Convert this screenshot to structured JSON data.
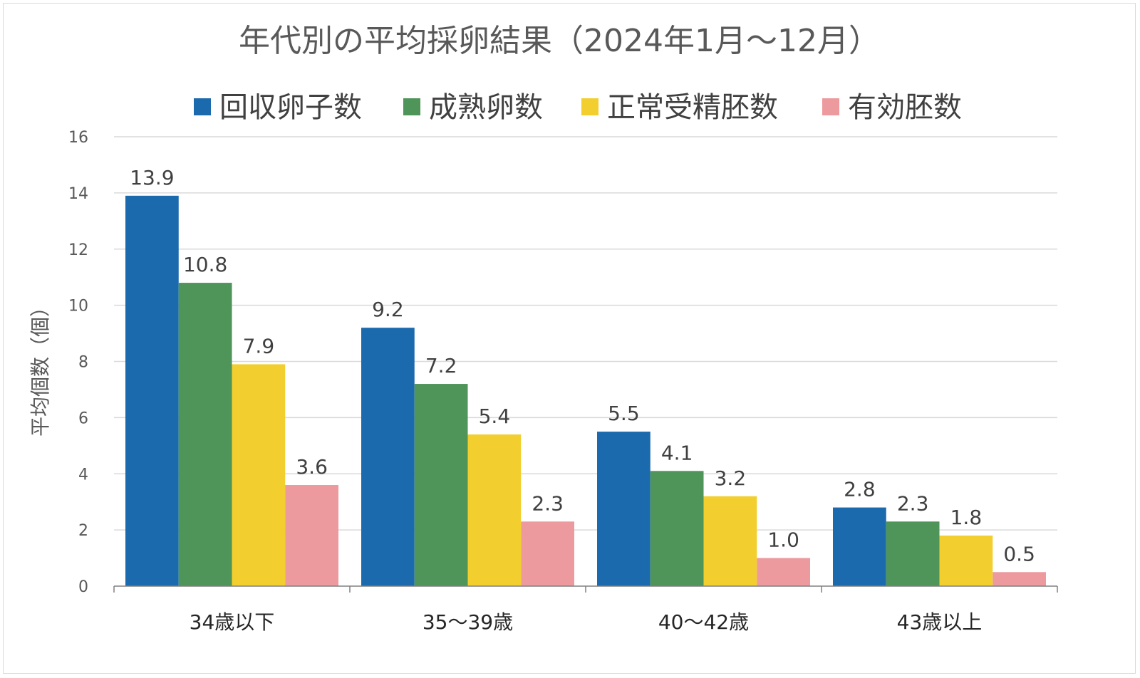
{
  "chart_data": {
    "type": "bar",
    "title": "年代別の平均採卵結果（2024年1月～12月）",
    "ylabel": "平均個数（個）",
    "xlabel": "",
    "ylim": [
      0,
      16
    ],
    "yticks": [
      0,
      2,
      4,
      6,
      8,
      10,
      12,
      14,
      16
    ],
    "grid": true,
    "legend_position": "top",
    "categories": [
      "34歳以下",
      "35～39歳",
      "40～42歳",
      "43歳以上"
    ],
    "series": [
      {
        "name": "回収卵子数",
        "color": "#1b6aad",
        "values": [
          13.9,
          9.2,
          5.5,
          2.8
        ],
        "labels": [
          "13.9",
          "9.2",
          "5.5",
          "2.8"
        ]
      },
      {
        "name": "成熟卵数",
        "color": "#4f9459",
        "values": [
          10.8,
          7.2,
          4.1,
          2.3
        ],
        "labels": [
          "10.8",
          "7.2",
          "4.1",
          "2.3"
        ]
      },
      {
        "name": "正常受精胚数",
        "color": "#f2cf2f",
        "values": [
          7.9,
          5.4,
          3.2,
          1.8
        ],
        "labels": [
          "7.9",
          "5.4",
          "3.2",
          "1.8"
        ]
      },
      {
        "name": "有効胚数",
        "color": "#ec9a9d",
        "values": [
          3.6,
          2.3,
          1.0,
          0.5
        ],
        "labels": [
          "3.6",
          "2.3",
          "1.0",
          "0.5"
        ]
      }
    ]
  }
}
